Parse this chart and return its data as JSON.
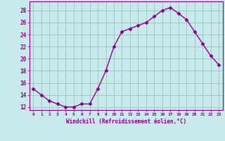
{
  "x": [
    0,
    1,
    2,
    3,
    4,
    5,
    6,
    7,
    8,
    9,
    10,
    11,
    12,
    13,
    14,
    15,
    16,
    17,
    18,
    19,
    20,
    21,
    22,
    23
  ],
  "y": [
    15,
    14,
    13,
    12.5,
    12,
    12,
    12.5,
    12.5,
    15,
    18,
    22,
    24.5,
    25,
    25.5,
    26,
    27,
    28,
    28.5,
    27.5,
    26.5,
    24.5,
    22.5,
    20.5,
    19
  ],
  "line_color": "#8b008b",
  "marker": "D",
  "marker_size": 2.5,
  "background_color": "#c8eaea",
  "grid_color": "#a0c8c8",
  "xlabel": "Windchill (Refroidissement éolien,°C)",
  "xlabel_color": "#8b008b",
  "tick_color": "#8b008b",
  "ylim": [
    11.5,
    29.5
  ],
  "yticks": [
    12,
    14,
    16,
    18,
    20,
    22,
    24,
    26,
    28
  ],
  "xlim": [
    -0.5,
    23.5
  ],
  "xticks": [
    0,
    1,
    2,
    3,
    4,
    5,
    6,
    7,
    8,
    9,
    10,
    11,
    12,
    13,
    14,
    15,
    16,
    17,
    18,
    19,
    20,
    21,
    22,
    23
  ]
}
